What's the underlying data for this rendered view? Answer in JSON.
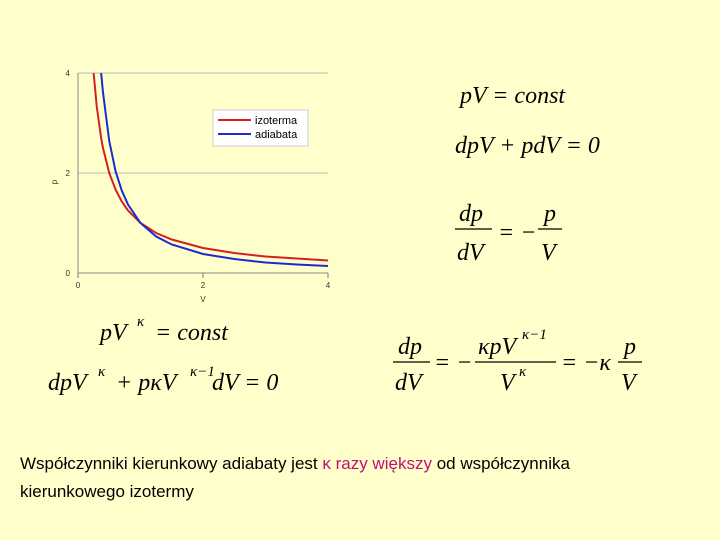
{
  "chart_data": {
    "type": "line",
    "xlabel": "V",
    "ylabel": "p",
    "x": [
      0.25,
      0.3,
      0.37,
      0.4,
      0.5,
      0.6,
      0.7,
      0.8,
      1,
      1.25,
      1.5,
      2,
      2.5,
      3,
      3.5,
      4
    ],
    "series": [
      {
        "name": "izoterma",
        "color": "#d42020",
        "values": [
          4,
          3.33,
          2.7,
          2.5,
          2,
          1.67,
          1.43,
          1.25,
          1,
          0.8,
          0.67,
          0.5,
          0.4,
          0.33,
          0.29,
          0.25
        ]
      },
      {
        "name": "adiabata",
        "color": "#1c2ad0",
        "values": [
          null,
          null,
          4,
          3.61,
          2.64,
          2.04,
          1.65,
          1.37,
          1,
          0.73,
          0.57,
          0.38,
          0.28,
          0.21,
          0.17,
          0.14
        ]
      }
    ],
    "xlim": [
      0,
      4
    ],
    "ylim": [
      0,
      4
    ],
    "xticks": [
      0,
      2,
      4
    ],
    "yticks": [
      0,
      2,
      4
    ],
    "grid": true,
    "legend": "upper right"
  },
  "equations": {
    "e1": "pV = const",
    "e2": "dpV + pdV = 0",
    "e3": {
      "num1": "dp",
      "den1": "dV",
      "mid": "= −",
      "num2": "p",
      "den2": "V"
    },
    "e4": {
      "base": "pV",
      "exp": "κ",
      "rest": "= const"
    },
    "e5": {
      "a": "dpV",
      "exp1": "κ",
      "b": "+ pκV",
      "exp2": "κ−1",
      "c": "dV = 0"
    },
    "e6": {
      "num1": "dp",
      "den1": "dV",
      "mid1": "= −",
      "num2": "κpV",
      "exp2": "κ−1",
      "den2": "V",
      "exp3": "κ",
      "mid2": "= −κ",
      "num3": "p",
      "den3": "V"
    }
  },
  "caption": {
    "part1": "Współczynniki kierunkowy adiabaty jest",
    "kappa": "κ",
    "highlight": "razy większy",
    "part2": "od współczynnika",
    "line2": "kierunkowego izotermy"
  }
}
